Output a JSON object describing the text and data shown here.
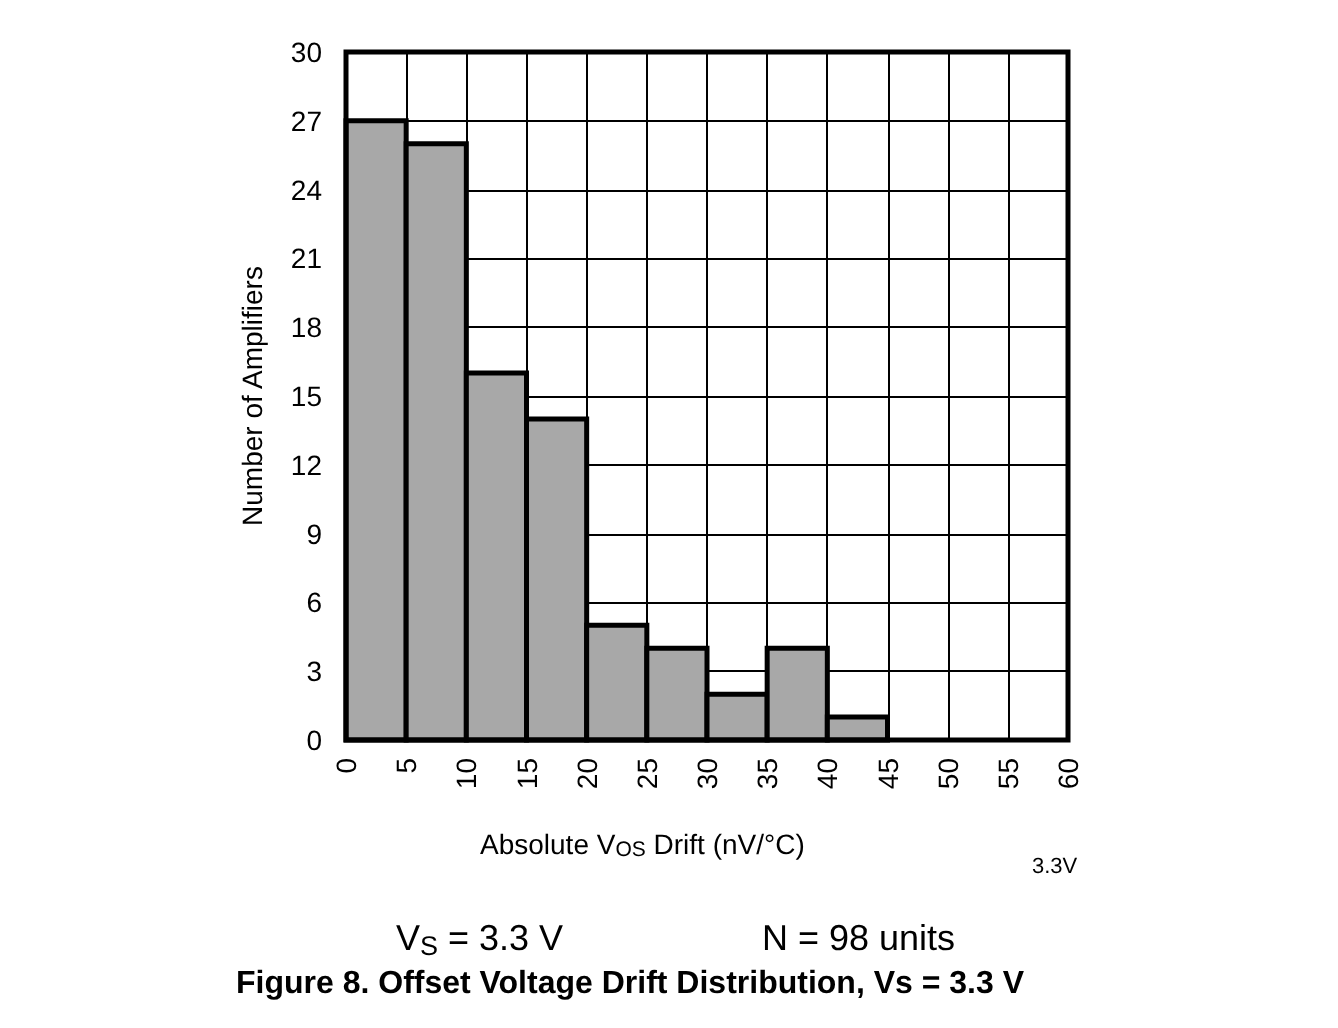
{
  "chart_data": {
    "type": "histogram",
    "title": "Figure 8. Offset Voltage Drift Distribution, Vs = 3.3 V",
    "xlabel": "Absolute V$_{OS}$ Drift (nV/°C)",
    "ylabel": "Number of Amplifiers",
    "bins": [
      0,
      5,
      10,
      15,
      20,
      25,
      30,
      35,
      40,
      45,
      50,
      55,
      60
    ],
    "values": [
      27,
      26,
      16,
      14,
      5,
      4,
      2,
      4,
      1,
      0,
      0,
      0
    ],
    "color": "#a8a8a8",
    "xlim": [
      0,
      60
    ],
    "xticks": [
      0,
      5,
      10,
      15,
      20,
      25,
      30,
      35,
      40,
      45,
      50,
      55,
      60
    ],
    "ylim": [
      0,
      30
    ],
    "yticks": [
      0,
      3,
      6,
      9,
      12,
      15,
      18,
      21,
      24,
      27,
      30
    ],
    "grid": true,
    "annotations": [
      "V$_{S}$ = 3.3 V",
      "N = 98 units",
      "3.3V"
    ]
  }
}
